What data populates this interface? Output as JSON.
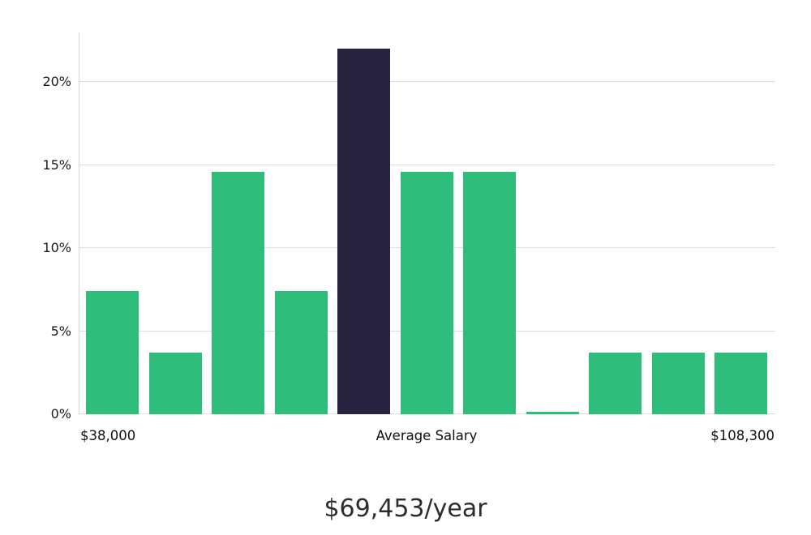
{
  "chart_data": {
    "type": "bar",
    "title": "$69,453/year",
    "x_axis_labels": {
      "left": "$38,000",
      "center": "Average Salary",
      "right": "$108,300"
    },
    "y_ticks": [
      0,
      5,
      10,
      15,
      20
    ],
    "y_tick_suffix": "%",
    "values": [
      7.4,
      3.7,
      14.6,
      7.4,
      22.0,
      14.6,
      14.6,
      0.15,
      3.7,
      3.7,
      3.7
    ],
    "highlight_index": 4,
    "ylim": [
      0,
      23
    ],
    "grid": true,
    "legend": false,
    "colors": {
      "bar": "#2ebd7a",
      "highlight": "#262240",
      "gridline": "#dedede",
      "axis": "#d9d9d9",
      "text": "#1a1a1a"
    }
  }
}
